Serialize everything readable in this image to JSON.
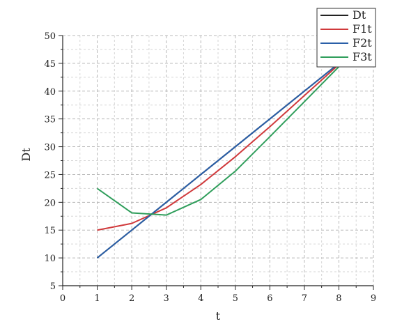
{
  "chart_data": {
    "type": "line",
    "title": "",
    "xlabel": "t",
    "ylabel": "Dt",
    "xlim": [
      0,
      9
    ],
    "ylim": [
      5,
      50
    ],
    "xticks": [
      0,
      1,
      2,
      3,
      4,
      5,
      6,
      7,
      8,
      9
    ],
    "yticks": [
      5,
      10,
      15,
      20,
      25,
      30,
      35,
      40,
      45,
      50
    ],
    "grid": true,
    "legend_position": "top-right",
    "series": [
      {
        "name": "Dt",
        "color": "#222222",
        "x": [
          1,
          2,
          3,
          4,
          5,
          6,
          7,
          8
        ],
        "y": [
          10,
          15,
          20,
          25,
          30,
          35,
          40,
          45
        ]
      },
      {
        "name": "F1t",
        "color": "#d0393b",
        "x": [
          1,
          2,
          3,
          4,
          5,
          6,
          7,
          8
        ],
        "y": [
          15,
          16.2,
          19,
          23.2,
          28.2,
          33.6,
          39.2,
          44.8
        ]
      },
      {
        "name": "F2t",
        "color": "#2a5fa8",
        "x": [
          1,
          2,
          3,
          4,
          5,
          6,
          7,
          8
        ],
        "y": [
          10,
          15,
          20,
          25,
          30,
          35,
          40,
          45
        ]
      },
      {
        "name": "F3t",
        "color": "#2f9e5b",
        "x": [
          1,
          2,
          3,
          4,
          5,
          6,
          7,
          8
        ],
        "y": [
          22.5,
          18.1,
          17.7,
          20.5,
          25.6,
          31.8,
          38.1,
          44.4
        ]
      }
    ]
  }
}
